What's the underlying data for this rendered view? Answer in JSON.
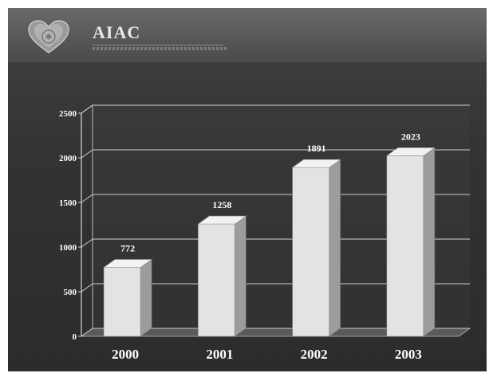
{
  "header": {
    "brand": "AIAC",
    "logo_icon": "heart-logo-icon"
  },
  "chart_data": {
    "type": "bar",
    "title": "",
    "xlabel": "",
    "ylabel": "",
    "categories": [
      "2000",
      "2001",
      "2002",
      "2003"
    ],
    "values": [
      772,
      1258,
      1891,
      2023
    ],
    "data_labels": [
      "772",
      "1258",
      "1891",
      "2023"
    ],
    "ylim": [
      0,
      2500
    ],
    "yticks": [
      0,
      500,
      1000,
      1500,
      2000,
      2500
    ],
    "grid": true,
    "legend": "none",
    "style": "3d-bars",
    "colors": {
      "bar_front": "#e3e3e3",
      "bar_top": "#f2f2f2",
      "bar_side": "#9c9c9c",
      "gridline": "#cfcfcf",
      "text": "#ffffff"
    }
  }
}
